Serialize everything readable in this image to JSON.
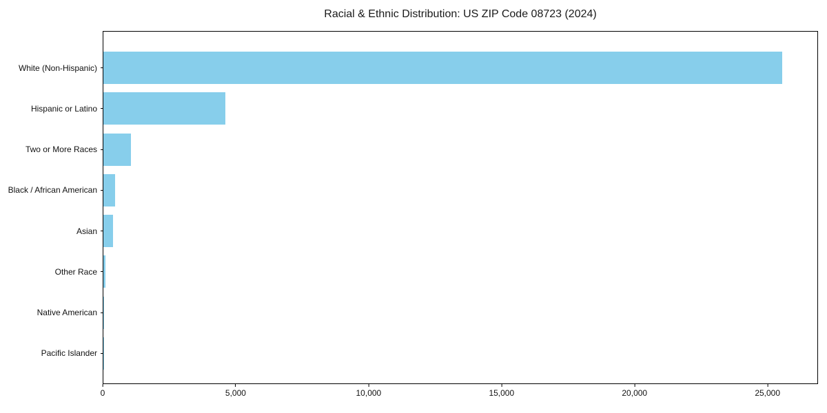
{
  "chart_data": {
    "type": "bar",
    "orientation": "horizontal",
    "title": "Racial & Ethnic Distribution: US ZIP Code 08723 (2024)",
    "categories": [
      "White (Non-Hispanic)",
      "Hispanic or Latino",
      "Two or More Races",
      "Black / African American",
      "Asian",
      "Other Race",
      "Native American",
      "Pacific Islander"
    ],
    "values": [
      25570,
      4590,
      1040,
      435,
      360,
      70,
      20,
      10
    ],
    "xlabel": "",
    "ylabel": "",
    "xlim": [
      0,
      26900
    ],
    "xticks": [
      0,
      5000,
      10000,
      15000,
      20000,
      25000
    ],
    "xtick_labels": [
      "0",
      "5,000",
      "10,000",
      "15,000",
      "20,000",
      "25,000"
    ],
    "bar_color": "#87CEEB",
    "spine_color": "#000000",
    "grid": false,
    "legend": null
  }
}
